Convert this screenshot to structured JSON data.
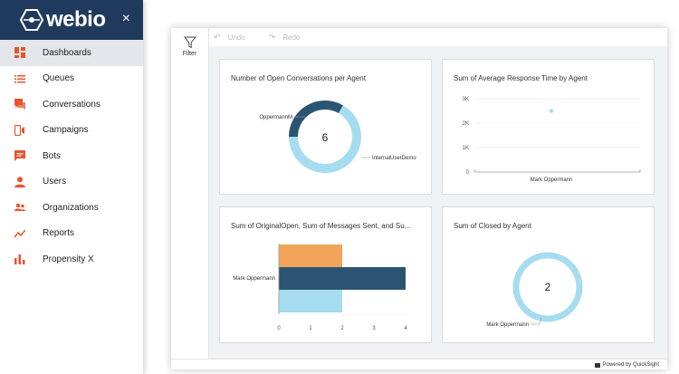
{
  "brand": {
    "name": "webio",
    "close_icon": "×"
  },
  "nav": {
    "items": [
      {
        "label": "Dashboards",
        "icon": "dashboard-icon",
        "active": true
      },
      {
        "label": "Queues",
        "icon": "list-icon"
      },
      {
        "label": "Conversations",
        "icon": "chat-icon"
      },
      {
        "label": "Campaigns",
        "icon": "campaign-icon"
      },
      {
        "label": "Bots",
        "icon": "bot-icon"
      },
      {
        "label": "Users",
        "icon": "user-icon"
      },
      {
        "label": "Organizations",
        "icon": "group-icon"
      },
      {
        "label": "Reports",
        "icon": "trend-icon"
      },
      {
        "label": "Propensity X",
        "icon": "bar-chart-icon"
      }
    ]
  },
  "toolbar": {
    "filter_label": "Filter",
    "undo_label": "Undo",
    "redo_label": "Redo"
  },
  "footer": {
    "powered_by": "Powered by QuickSight"
  },
  "colors": {
    "accent": "#e8542c",
    "brand": "#1f3a5c",
    "light_blue": "#a6dcef",
    "dark_blue": "#2b5473",
    "orange": "#f0a55b"
  },
  "chart_data": [
    {
      "type": "pie",
      "title": "Number of Open Conversations per Agent",
      "center_label": "6",
      "slices": [
        {
          "name": "OppermannM",
          "value": 2
        },
        {
          "name": "InternalUserDemo",
          "value": 4
        }
      ]
    },
    {
      "type": "scatter",
      "title": "Sum of Average Response Time by Agent",
      "categories": [
        "Mark Oppermann"
      ],
      "values": [
        2500
      ],
      "yticks": [
        "0",
        "1K",
        "2K",
        "3K"
      ],
      "ylim": [
        0,
        3000
      ]
    },
    {
      "type": "bar",
      "title": "Sum of OriginalOpen, Sum of Messages Sent, and Su...",
      "categories": [
        "Mark Oppermann"
      ],
      "series": [
        {
          "values": [
            2
          ]
        },
        {
          "values": [
            4
          ]
        },
        {
          "values": [
            2
          ]
        }
      ],
      "xticks": [
        "0",
        "1",
        "2",
        "3",
        "4"
      ],
      "xlim": [
        0,
        4
      ]
    },
    {
      "type": "pie",
      "title": "Sum of Closed by Agent",
      "center_label": "2",
      "slices": [
        {
          "name": "Mark Oppermann",
          "value": 2
        }
      ]
    }
  ]
}
